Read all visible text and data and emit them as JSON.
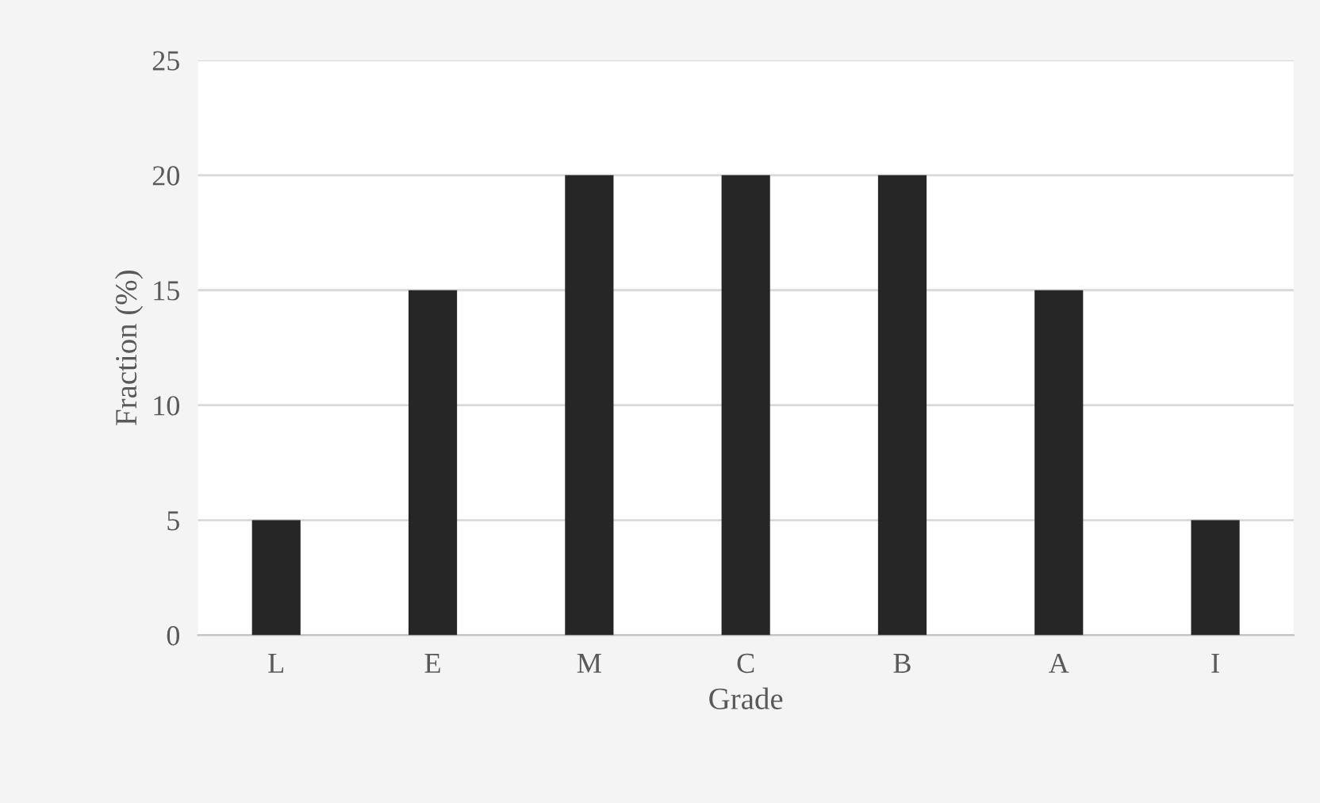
{
  "chart_data": {
    "type": "bar",
    "xlabel": "Grade",
    "ylabel": "Fraction (%)",
    "categories": [
      "L",
      "E",
      "M",
      "C",
      "B",
      "A",
      "I"
    ],
    "values": [
      5,
      15,
      20,
      20,
      20,
      15,
      5
    ],
    "color": "#262626",
    "ylim": [
      0,
      25
    ],
    "yticks": [
      0,
      5,
      10,
      15,
      20,
      25
    ],
    "grid": "y",
    "legend": false
  }
}
